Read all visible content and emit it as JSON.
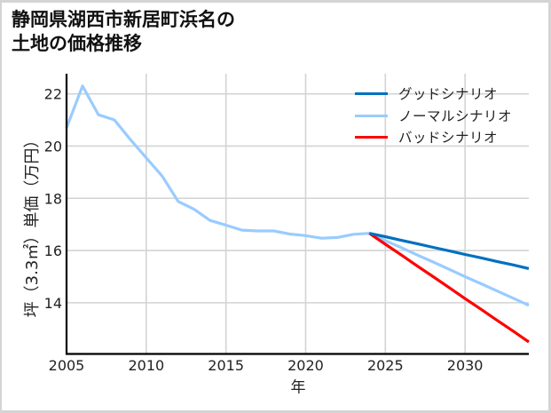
{
  "title": {
    "line1": "静岡県湖西市新居町浜名の",
    "line2": "土地の価格推移"
  },
  "chart_data": {
    "type": "line",
    "title": "静岡県湖西市新居町浜名の土地の価格推移",
    "xlabel": "年",
    "ylabel": "坪（3.3㎡）単価（万円）",
    "xlim": [
      2005,
      2034
    ],
    "ylim": [
      12.04,
      22.77
    ],
    "xticks": [
      2005,
      2010,
      2015,
      2020,
      2025,
      2030
    ],
    "xtick_labels": [
      "2005",
      "2010",
      "2015",
      "2020",
      "2025",
      "2030"
    ],
    "yticks": [
      14,
      16,
      18,
      20,
      22
    ],
    "ytick_labels": [
      "14",
      "16",
      "18",
      "20",
      "22"
    ],
    "grid": true,
    "legend_position": "upper right",
    "series": [
      {
        "name": "グッドシナリオ",
        "color": "#0070C0",
        "x": [
          2024,
          2025,
          2026,
          2027,
          2028,
          2029,
          2030,
          2031,
          2032,
          2033,
          2034
        ],
        "y": [
          16.66,
          16.53,
          16.39,
          16.26,
          16.12,
          15.99,
          15.85,
          15.72,
          15.58,
          15.45,
          15.31
        ]
      },
      {
        "name": "ノーマルシナリオ",
        "color": "#99CCFF",
        "x": [
          2005,
          2006,
          2007,
          2008,
          2009,
          2010,
          2011,
          2012,
          2013,
          2014,
          2015,
          2016,
          2017,
          2018,
          2019,
          2020,
          2021,
          2022,
          2023,
          2024,
          2025,
          2026,
          2027,
          2028,
          2029,
          2030,
          2031,
          2032,
          2033,
          2034
        ],
        "y": [
          20.7,
          22.3,
          21.2,
          21.0,
          20.25,
          19.55,
          18.85,
          17.88,
          17.58,
          17.15,
          16.97,
          16.78,
          16.75,
          16.75,
          16.63,
          16.57,
          16.47,
          16.5,
          16.62,
          16.66,
          16.38,
          16.11,
          15.83,
          15.56,
          15.28,
          15.0,
          14.73,
          14.45,
          14.18,
          13.9
        ]
      },
      {
        "name": "バッドシナリオ",
        "color": "#FF0000",
        "x": [
          2024,
          2025,
          2026,
          2027,
          2028,
          2029,
          2030,
          2031,
          2032,
          2033,
          2034
        ],
        "y": [
          16.66,
          16.24,
          15.83,
          15.41,
          15.0,
          14.58,
          14.16,
          13.75,
          13.33,
          12.92,
          12.5
        ]
      }
    ]
  }
}
